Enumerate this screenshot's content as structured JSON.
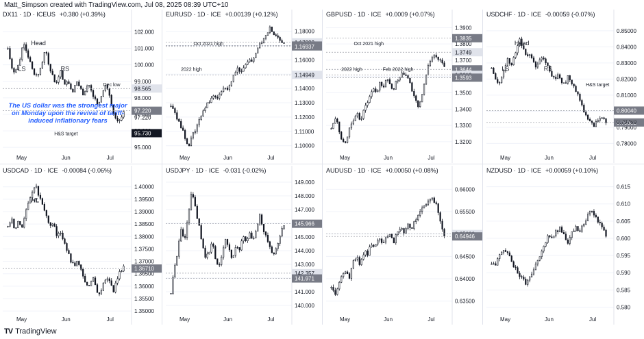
{
  "header": {
    "credit": "Matt_Simpson created with TradingView.com, Jul 08, 2025 08:39 UTC+10"
  },
  "footer": {
    "brand": "TradingView"
  },
  "chart_data": [
    {
      "type": "candlestick",
      "title": "DX11 · 1D · ICEUS",
      "change": "+0.380 (+0.39%)",
      "x_labels": [
        "May",
        "Jun",
        "Jul"
      ],
      "y_ticks": [
        95.0,
        96.0,
        97.0,
        98.0,
        99.0,
        100.0,
        101.0,
        102.0
      ],
      "ylim": [
        94.8,
        102.6
      ],
      "series_path": [
        101.0,
        100.0,
        99.6,
        99.8,
        100.5,
        101.3,
        100.8,
        100.2,
        99.6,
        99.4,
        99.5,
        100.2,
        101.0,
        100.1,
        99.5,
        98.8,
        99.2,
        99.6,
        98.8,
        99.0,
        98.6,
        98.4,
        99.0,
        98.7,
        98.2,
        98.6,
        98.8,
        98.3,
        97.8,
        97.5,
        98.2,
        98.8,
        98.5,
        97.6,
        97.0,
        96.6,
        96.8,
        97.2
      ],
      "price_tags": [
        {
          "value": 98.565,
          "label": "98.565",
          "color": "#e0e3eb",
          "text_color": "#131722"
        },
        {
          "value": 97.22,
          "label": "97.220",
          "color": "#787b86",
          "text_color": "#ffffff"
        }
      ],
      "axis_value_labels": [
        "97.220"
      ],
      "annotations": [
        {
          "text": "Head"
        },
        {
          "text": "LS"
        },
        {
          "text": "RS"
        },
        {
          "text": "Dec low"
        },
        {
          "text": "H&S target",
          "tag": "95.730"
        },
        {
          "text": "The US dollar was the strongest major on Monday upon the revival of tariff-induced inflationary fears"
        }
      ]
    },
    {
      "type": "candlestick",
      "title": "EURUSD · 1D · ICE",
      "change": "+0.00139 (+0.12%)",
      "x_labels": [
        "May",
        "Jun",
        "Jul"
      ],
      "y_ticks": [
        1.1,
        1.11,
        1.12,
        1.13,
        1.14,
        1.15,
        1.16,
        1.17,
        1.18
      ],
      "ylim": [
        1.0965,
        1.1865
      ],
      "series_path": [
        1.129,
        1.124,
        1.118,
        1.112,
        1.106,
        1.1,
        1.106,
        1.112,
        1.118,
        1.124,
        1.128,
        1.132,
        1.135,
        1.132,
        1.138,
        1.142,
        1.14,
        1.145,
        1.15,
        1.154,
        1.152,
        1.156,
        1.16,
        1.158,
        1.164,
        1.17,
        1.174,
        1.178,
        1.182,
        1.178,
        1.176,
        1.174,
        1.172
      ],
      "price_tags": [
        {
          "value": 1.17223,
          "label": "1.17223",
          "color": "#e0e3eb",
          "text_color": "#131722"
        },
        {
          "value": 1.17,
          "label": "1.17000",
          "color": "#787b86",
          "text_color": "#ffffff"
        },
        {
          "value": 1.16937,
          "label": "1.16937",
          "color": "#787b86",
          "text_color": "#ffffff"
        },
        {
          "value": 1.14949,
          "label": "1.14949",
          "color": "#e0e3eb",
          "text_color": "#131722"
        }
      ],
      "annotations": [
        {
          "text": "Oct 2021 high"
        },
        {
          "text": "2022 high"
        }
      ]
    },
    {
      "type": "candlestick",
      "title": "GBPUSD · 1D · ICE",
      "change": "+0.0009 (+0.07%)",
      "x_labels": [
        "May",
        "Jun",
        "Jul"
      ],
      "y_ticks": [
        1.32,
        1.33,
        1.34,
        1.35,
        1.36,
        1.37,
        1.38,
        1.39
      ],
      "ylim": [
        1.3145,
        1.3935
      ],
      "series_path": [
        1.328,
        1.334,
        1.331,
        1.323,
        1.318,
        1.323,
        1.33,
        1.334,
        1.337,
        1.332,
        1.34,
        1.344,
        1.348,
        1.352,
        1.35,
        1.356,
        1.353,
        1.359,
        1.355,
        1.351,
        1.356,
        1.358,
        1.362,
        1.36,
        1.358,
        1.352,
        1.347,
        1.34,
        1.348,
        1.358,
        1.366,
        1.372,
        1.374,
        1.372,
        1.368,
        1.366
      ],
      "price_tags": [
        {
          "value": 1.3835,
          "label": "1.3835",
          "color": "#787b86",
          "text_color": "#ffffff"
        },
        {
          "value": 1.3749,
          "label": "1.3749",
          "color": "#e0e3eb",
          "text_color": "#131722"
        },
        {
          "value": 1.3644,
          "label": "1.3644",
          "color": "#787b86",
          "text_color": "#ffffff"
        },
        {
          "value": 1.361,
          "label": "1.3610",
          "color": "#e0e3eb",
          "text_color": "#131722"
        },
        {
          "value": 1.3593,
          "label": "1.3593",
          "color": "#787b86",
          "text_color": "#ffffff"
        }
      ],
      "annotations": [
        {
          "text": "Oct 2021 high"
        },
        {
          "text": "2022 high"
        },
        {
          "text": "Feb 2022 high"
        }
      ]
    },
    {
      "type": "candlestick",
      "title": "USDCHF · 1D · ICE",
      "change": "-0.00059 (-0.07%)",
      "x_labels": [
        "May",
        "Jun",
        "Jul"
      ],
      "y_ticks": [
        0.78,
        0.79,
        0.8,
        0.81,
        0.82,
        0.83,
        0.84,
        0.85
      ],
      "ylim": [
        0.7755,
        0.8555
      ],
      "series_path": [
        0.828,
        0.822,
        0.817,
        0.819,
        0.826,
        0.832,
        0.828,
        0.834,
        0.84,
        0.845,
        0.838,
        0.834,
        0.836,
        0.833,
        0.827,
        0.83,
        0.835,
        0.831,
        0.826,
        0.822,
        0.82,
        0.823,
        0.819,
        0.817,
        0.821,
        0.818,
        0.815,
        0.811,
        0.806,
        0.8,
        0.796,
        0.793,
        0.791,
        0.794,
        0.795,
        0.795,
        0.794
      ],
      "price_tags": [
        {
          "value": 0.8004,
          "label": "0.80040",
          "color": "#787b86",
          "text_color": "#ffffff"
        },
        {
          "value": 0.79302,
          "label": "0.79302",
          "color": "#787b86",
          "text_color": "#ffffff"
        }
      ],
      "axis_value_labels": [
        "0.79769"
      ],
      "annotations": [
        {
          "text": "Head"
        },
        {
          "text": "LS"
        },
        {
          "text": "RS"
        },
        {
          "text": "H&S target"
        }
      ]
    },
    {
      "type": "candlestick",
      "title": "USDCAD · 1D · ICE",
      "change": "-0.00084 (-0.06%)",
      "x_labels": [
        "May",
        "Jun",
        "Jul"
      ],
      "y_ticks": [
        1.35,
        1.355,
        1.36,
        1.365,
        1.37,
        1.375,
        1.38,
        1.385,
        1.39,
        1.395,
        1.4
      ],
      "ylim": [
        1.3495,
        1.4035
      ],
      "series_path": [
        1.384,
        1.388,
        1.382,
        1.386,
        1.383,
        1.39,
        1.394,
        1.398,
        1.4,
        1.396,
        1.392,
        1.388,
        1.384,
        1.386,
        1.38,
        1.382,
        1.378,
        1.374,
        1.37,
        1.368,
        1.37,
        1.366,
        1.362,
        1.359,
        1.364,
        1.36,
        1.356,
        1.36,
        1.364,
        1.362,
        1.358,
        1.362,
        1.366,
        1.368
      ],
      "price_tags": [
        {
          "value": 1.3671,
          "label": "1.36710",
          "color": "#787b86",
          "text_color": "#ffffff"
        }
      ],
      "annotations": [
        {
          "text": "HL"
        }
      ]
    },
    {
      "type": "candlestick",
      "title": "USDJPY · 1D · ICE",
      "change": "-0.031 (-0.02%)",
      "x_labels": [
        "May",
        "Jun",
        "Jul"
      ],
      "y_ticks": [
        140.0,
        141.0,
        142.0,
        143.0,
        144.0,
        145.0,
        146.0,
        147.0,
        148.0,
        149.0
      ],
      "ylim": [
        139.5,
        149.3
      ],
      "series_path": [
        141.0,
        142.6,
        144.0,
        145.6,
        144.6,
        146.5,
        148.4,
        147.2,
        146.0,
        144.8,
        143.4,
        143.8,
        144.6,
        143.5,
        142.8,
        143.9,
        145.0,
        144.0,
        143.3,
        144.5,
        144.0,
        145.1,
        144.6,
        145.3,
        144.8,
        145.6,
        146.6,
        145.5,
        144.8,
        144.1,
        143.7,
        144.4,
        145.3,
        145.9
      ],
      "price_tags": [
        {
          "value": 145.966,
          "label": "145.966",
          "color": "#787b86",
          "text_color": "#ffffff"
        },
        {
          "value": 142.357,
          "label": "142.357",
          "color": "#e0e3eb",
          "text_color": "#131722"
        },
        {
          "value": 141.971,
          "label": "141.971",
          "color": "#787b86",
          "text_color": "#ffffff"
        }
      ]
    },
    {
      "type": "candlestick",
      "title": "AUDUSD · 1D · ICE",
      "change": "+0.00050 (+0.08%)",
      "x_labels": [
        "May",
        "Jun",
        "Jul"
      ],
      "y_ticks": [
        0.635,
        0.64,
        0.645,
        0.65,
        0.655,
        0.66
      ],
      "ylim": [
        0.6325,
        0.6625
      ],
      "series_path": [
        0.638,
        0.6365,
        0.639,
        0.641,
        0.642,
        0.6405,
        0.6435,
        0.645,
        0.643,
        0.646,
        0.6455,
        0.648,
        0.647,
        0.649,
        0.6475,
        0.6495,
        0.65,
        0.648,
        0.6505,
        0.6515,
        0.65,
        0.652,
        0.651,
        0.653,
        0.6545,
        0.656,
        0.657,
        0.658,
        0.6575,
        0.656,
        0.652,
        0.6495
      ],
      "price_tags": [
        {
          "value": 0.65,
          "label": "0.65000",
          "color": "#e0e3eb",
          "text_color": "#131722"
        },
        {
          "value": 0.64946,
          "label": "0.64946",
          "color": "#787b86",
          "text_color": "#ffffff"
        }
      ]
    },
    {
      "type": "candlestick",
      "title": "NZDUSD · 1D · ICE",
      "change": "+0.00059 (+0.10%)",
      "x_labels": [
        "May",
        "Jun",
        "Jul"
      ],
      "y_ticks": [
        0.58,
        0.585,
        0.59,
        0.595,
        0.6,
        0.605,
        0.61,
        0.615
      ],
      "ylim": [
        0.5785,
        0.6175
      ],
      "series_path": [
        0.593,
        0.592,
        0.595,
        0.597,
        0.596,
        0.594,
        0.5915,
        0.59,
        0.588,
        0.587,
        0.589,
        0.5905,
        0.5935,
        0.596,
        0.5985,
        0.601,
        0.6,
        0.602,
        0.603,
        0.601,
        0.599,
        0.6015,
        0.603,
        0.602,
        0.604,
        0.606,
        0.608,
        0.607,
        0.605,
        0.603,
        0.601
      ],
      "price_tags": []
    }
  ]
}
